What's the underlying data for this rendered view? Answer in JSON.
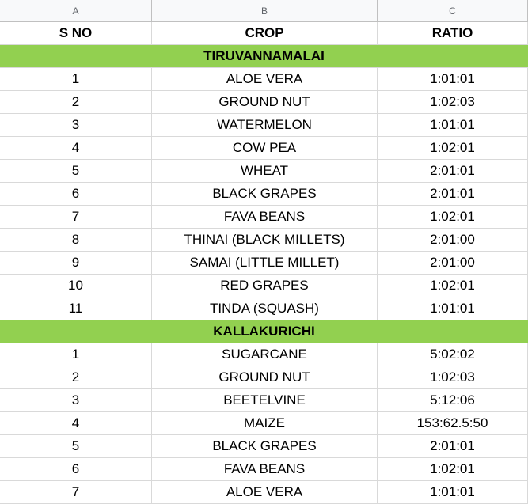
{
  "columns": [
    "A",
    "B",
    "C"
  ],
  "header": {
    "sno": "S NO",
    "crop": "CROP",
    "ratio": "RATIO"
  },
  "sections": [
    {
      "name": "TIRUVANNAMALAI",
      "rows": [
        {
          "sno": "1",
          "crop": "ALOE VERA",
          "ratio": "1:01:01"
        },
        {
          "sno": "2",
          "crop": "GROUND NUT",
          "ratio": "1:02:03"
        },
        {
          "sno": "3",
          "crop": "WATERMELON",
          "ratio": "1:01:01"
        },
        {
          "sno": "4",
          "crop": "COW PEA",
          "ratio": "1:02:01"
        },
        {
          "sno": "5",
          "crop": "WHEAT",
          "ratio": "2:01:01"
        },
        {
          "sno": "6",
          "crop": "BLACK GRAPES",
          "ratio": "2:01:01"
        },
        {
          "sno": "7",
          "crop": "FAVA BEANS",
          "ratio": "1:02:01"
        },
        {
          "sno": "8",
          "crop": "THINAI (BLACK MILLETS)",
          "ratio": "2:01:00"
        },
        {
          "sno": "9",
          "crop": "SAMAI (LITTLE MILLET)",
          "ratio": "2:01:00"
        },
        {
          "sno": "10",
          "crop": "RED GRAPES",
          "ratio": "1:02:01"
        },
        {
          "sno": "11",
          "crop": "TINDA (SQUASH)",
          "ratio": "1:01:01"
        }
      ]
    },
    {
      "name": "KALLAKURICHI",
      "rows": [
        {
          "sno": "1",
          "crop": "SUGARCANE",
          "ratio": "5:02:02"
        },
        {
          "sno": "2",
          "crop": "GROUND NUT",
          "ratio": "1:02:03"
        },
        {
          "sno": "3",
          "crop": "BEETELVINE",
          "ratio": "5:12:06"
        },
        {
          "sno": "4",
          "crop": "MAIZE",
          "ratio": "153:62.5:50"
        },
        {
          "sno": "5",
          "crop": "BLACK GRAPES",
          "ratio": "2:01:01"
        },
        {
          "sno": "6",
          "crop": "FAVA BEANS",
          "ratio": "1:02:01"
        },
        {
          "sno": "7",
          "crop": "ALOE VERA",
          "ratio": "1:01:01"
        }
      ]
    }
  ],
  "colors": {
    "section_fill": "#92d050",
    "column_header_bg": "#f8f9fa"
  }
}
